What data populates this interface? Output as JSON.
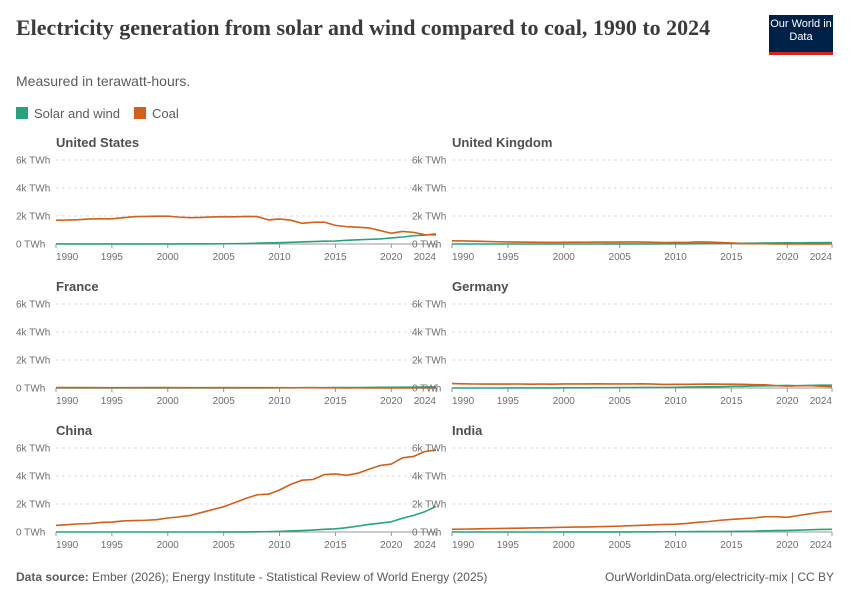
{
  "title": "Electricity generation from solar and wind compared to coal, 1990 to 2024",
  "subtitle": "Measured in terawatt-hours.",
  "logo": "Our World in Data",
  "source_label": "Data source:",
  "source": "Ember (2026); Energy Institute - Statistical Review of World Energy (2025)",
  "url": "OurWorldinData.org/electricity-mix | CC BY",
  "chart_data": [
    {
      "type": "line",
      "title": "United States",
      "x": [
        1990,
        1991,
        1992,
        1993,
        1994,
        1995,
        1996,
        1997,
        1998,
        1999,
        2000,
        2001,
        2002,
        2003,
        2004,
        2005,
        2006,
        2007,
        2008,
        2009,
        2010,
        2011,
        2012,
        2013,
        2014,
        2015,
        2016,
        2017,
        2018,
        2019,
        2020,
        2021,
        2022,
        2023,
        2024
      ],
      "xlim": [
        1990,
        2024
      ],
      "xticks": [
        1990,
        1995,
        2000,
        2005,
        2010,
        2015,
        2020,
        2024
      ],
      "ylim": [
        0,
        6000
      ],
      "yticks": [
        {
          "value": 0,
          "label": "0 TWh"
        },
        {
          "value": 2000,
          "label": "2k TWh"
        },
        {
          "value": 4000,
          "label": "4k TWh"
        },
        {
          "value": 6000,
          "label": "6k TWh"
        }
      ],
      "series": [
        {
          "name": "Solar and wind",
          "color": "#27a27f",
          "values": [
            3,
            3,
            3,
            3,
            4,
            4,
            4,
            4,
            4,
            5,
            6,
            7,
            11,
            11,
            15,
            18,
            27,
            35,
            56,
            75,
            95,
            120,
            145,
            172,
            200,
            214,
            260,
            300,
            330,
            360,
            430,
            500,
            590,
            640,
            720
          ]
        },
        {
          "name": "Coal",
          "color": "#d0601a",
          "values": [
            1700,
            1710,
            1740,
            1790,
            1800,
            1800,
            1880,
            1950,
            1970,
            1990,
            1990,
            1920,
            1880,
            1900,
            1930,
            1950,
            1940,
            1970,
            1960,
            1720,
            1790,
            1700,
            1480,
            1550,
            1560,
            1330,
            1240,
            1200,
            1150,
            960,
            770,
            900,
            830,
            670,
            650
          ]
        }
      ]
    },
    {
      "type": "line",
      "title": "United Kingdom",
      "x": [
        1990,
        1991,
        1992,
        1993,
        1994,
        1995,
        1996,
        1997,
        1998,
        1999,
        2000,
        2001,
        2002,
        2003,
        2004,
        2005,
        2006,
        2007,
        2008,
        2009,
        2010,
        2011,
        2012,
        2013,
        2014,
        2015,
        2016,
        2017,
        2018,
        2019,
        2020,
        2021,
        2022,
        2023,
        2024
      ],
      "xlim": [
        1990,
        2024
      ],
      "xticks": [
        1990,
        1995,
        2000,
        2005,
        2010,
        2015,
        2020,
        2024
      ],
      "ylim": [
        0,
        6000
      ],
      "yticks": [
        {
          "value": 0,
          "label": "0 TWh"
        },
        {
          "value": 2000,
          "label": "2k TWh"
        },
        {
          "value": 4000,
          "label": "4k TWh"
        },
        {
          "value": 6000,
          "label": "6k TWh"
        }
      ],
      "series": [
        {
          "name": "Solar and wind",
          "color": "#27a27f",
          "values": [
            0,
            0,
            0,
            0,
            0,
            0,
            0,
            1,
            1,
            1,
            1,
            1,
            1,
            1,
            2,
            3,
            4,
            5,
            7,
            9,
            10,
            16,
            21,
            29,
            36,
            48,
            48,
            61,
            70,
            77,
            88,
            78,
            94,
            95,
            100
          ]
        },
        {
          "name": "Coal",
          "color": "#d0601a",
          "values": [
            230,
            220,
            200,
            180,
            160,
            150,
            140,
            130,
            120,
            110,
            120,
            130,
            125,
            140,
            135,
            140,
            150,
            140,
            125,
            105,
            110,
            110,
            145,
            135,
            102,
            76,
            31,
            23,
            17,
            8,
            5,
            6,
            5,
            4,
            1
          ]
        }
      ]
    },
    {
      "type": "line",
      "title": "France",
      "x": [
        1990,
        1991,
        1992,
        1993,
        1994,
        1995,
        1996,
        1997,
        1998,
        1999,
        2000,
        2001,
        2002,
        2003,
        2004,
        2005,
        2006,
        2007,
        2008,
        2009,
        2010,
        2011,
        2012,
        2013,
        2014,
        2015,
        2016,
        2017,
        2018,
        2019,
        2020,
        2021,
        2022,
        2023,
        2024
      ],
      "xlim": [
        1990,
        2024
      ],
      "xticks": [
        1990,
        1995,
        2000,
        2005,
        2010,
        2015,
        2020,
        2024
      ],
      "ylim": [
        0,
        6000
      ],
      "yticks": [
        {
          "value": 0,
          "label": "0 TWh"
        },
        {
          "value": 2000,
          "label": "2k TWh"
        },
        {
          "value": 4000,
          "label": "4k TWh"
        },
        {
          "value": 6000,
          "label": "6k TWh"
        }
      ],
      "series": [
        {
          "name": "Solar and wind",
          "color": "#27a27f",
          "values": [
            0,
            0,
            0,
            0,
            0,
            0,
            0,
            0,
            0,
            0,
            0,
            0,
            0,
            0,
            1,
            1,
            2,
            4,
            6,
            8,
            10,
            14,
            17,
            20,
            23,
            29,
            30,
            34,
            40,
            47,
            53,
            55,
            56,
            73,
            75
          ]
        },
        {
          "name": "Coal",
          "color": "#d0601a",
          "values": [
            30,
            30,
            33,
            28,
            25,
            27,
            27,
            24,
            33,
            30,
            28,
            24,
            25,
            27,
            25,
            28,
            23,
            24,
            24,
            21,
            24,
            17,
            19,
            20,
            9,
            9,
            8,
            10,
            6,
            2,
            2,
            3,
            3,
            2,
            1
          ]
        }
      ]
    },
    {
      "type": "line",
      "title": "Germany",
      "x": [
        1990,
        1991,
        1992,
        1993,
        1994,
        1995,
        1996,
        1997,
        1998,
        1999,
        2000,
        2001,
        2002,
        2003,
        2004,
        2005,
        2006,
        2007,
        2008,
        2009,
        2010,
        2011,
        2012,
        2013,
        2014,
        2015,
        2016,
        2017,
        2018,
        2019,
        2020,
        2021,
        2022,
        2023,
        2024
      ],
      "xlim": [
        1990,
        2024
      ],
      "xticks": [
        1990,
        1995,
        2000,
        2005,
        2010,
        2015,
        2020,
        2024
      ],
      "ylim": [
        0,
        6000
      ],
      "yticks": [
        {
          "value": 0,
          "label": "0 TWh"
        },
        {
          "value": 2000,
          "label": "2k TWh"
        },
        {
          "value": 4000,
          "label": "4k TWh"
        },
        {
          "value": 6000,
          "label": "6k TWh"
        }
      ],
      "series": [
        {
          "name": "Solar and wind",
          "color": "#27a27f",
          "values": [
            0,
            0,
            0,
            1,
            1,
            2,
            2,
            3,
            5,
            5,
            10,
            11,
            16,
            19,
            26,
            29,
            33,
            43,
            45,
            45,
            50,
            70,
            80,
            85,
            95,
            120,
            120,
            145,
            155,
            170,
            180,
            160,
            185,
            200,
            205
          ]
        },
        {
          "name": "Coal",
          "color": "#d0601a",
          "values": [
            320,
            300,
            285,
            280,
            280,
            280,
            285,
            275,
            280,
            275,
            290,
            290,
            290,
            300,
            290,
            290,
            290,
            300,
            280,
            255,
            260,
            260,
            270,
            280,
            270,
            270,
            260,
            240,
            230,
            170,
            135,
            165,
            170,
            125,
            105
          ]
        }
      ]
    },
    {
      "type": "line",
      "title": "China",
      "x": [
        1990,
        1991,
        1992,
        1993,
        1994,
        1995,
        1996,
        1997,
        1998,
        1999,
        2000,
        2001,
        2002,
        2003,
        2004,
        2005,
        2006,
        2007,
        2008,
        2009,
        2010,
        2011,
        2012,
        2013,
        2014,
        2015,
        2016,
        2017,
        2018,
        2019,
        2020,
        2021,
        2022,
        2023,
        2024
      ],
      "xlim": [
        1990,
        2024
      ],
      "xticks": [
        1990,
        1995,
        2000,
        2005,
        2010,
        2015,
        2020,
        2024
      ],
      "ylim": [
        0,
        6000
      ],
      "yticks": [
        {
          "value": 0,
          "label": "0 TWh"
        },
        {
          "value": 2000,
          "label": "2k TWh"
        },
        {
          "value": 4000,
          "label": "4k TWh"
        },
        {
          "value": 6000,
          "label": "6k TWh"
        }
      ],
      "series": [
        {
          "name": "Solar and wind",
          "color": "#27a27f",
          "values": [
            0,
            0,
            0,
            0,
            0,
            0,
            0,
            0,
            0,
            0,
            0,
            0,
            0,
            0,
            0,
            2,
            4,
            6,
            13,
            27,
            45,
            75,
            100,
            140,
            190,
            230,
            310,
            420,
            540,
            630,
            730,
            980,
            1190,
            1450,
            1830
          ]
        },
        {
          "name": "Coal",
          "color": "#d0601a",
          "values": [
            470,
            520,
            580,
            600,
            680,
            710,
            790,
            820,
            840,
            880,
            1000,
            1080,
            1180,
            1390,
            1600,
            1800,
            2100,
            2400,
            2660,
            2700,
            3000,
            3400,
            3700,
            3750,
            4100,
            4150,
            4050,
            4200,
            4480,
            4750,
            4850,
            5300,
            5400,
            5750,
            5850
          ]
        }
      ]
    },
    {
      "type": "line",
      "title": "India",
      "x": [
        1990,
        1991,
        1992,
        1993,
        1994,
        1995,
        1996,
        1997,
        1998,
        1999,
        2000,
        2001,
        2002,
        2003,
        2004,
        2005,
        2006,
        2007,
        2008,
        2009,
        2010,
        2011,
        2012,
        2013,
        2014,
        2015,
        2016,
        2017,
        2018,
        2019,
        2020,
        2021,
        2022,
        2023,
        2024
      ],
      "xlim": [
        1990,
        2024
      ],
      "xticks": [
        1990,
        1995,
        2000,
        2005,
        2010,
        2015,
        2020,
        2024
      ],
      "ylim": [
        0,
        6000
      ],
      "yticks": [
        {
          "value": 0,
          "label": "0 TWh"
        },
        {
          "value": 2000,
          "label": "2k TWh"
        },
        {
          "value": 4000,
          "label": "4k TWh"
        },
        {
          "value": 6000,
          "label": "6k TWh"
        }
      ],
      "series": [
        {
          "name": "Solar and wind",
          "color": "#27a27f",
          "values": [
            0,
            0,
            0,
            0,
            0,
            1,
            1,
            1,
            1,
            1,
            2,
            2,
            2,
            3,
            4,
            6,
            8,
            11,
            13,
            17,
            20,
            25,
            28,
            34,
            36,
            38,
            50,
            60,
            90,
            100,
            110,
            130,
            160,
            180,
            190
          ]
        },
        {
          "name": "Coal",
          "color": "#d0601a",
          "values": [
            190,
            205,
            220,
            235,
            250,
            260,
            275,
            290,
            300,
            320,
            340,
            350,
            365,
            380,
            400,
            420,
            450,
            480,
            510,
            540,
            560,
            610,
            690,
            750,
            840,
            900,
            950,
            1000,
            1090,
            1090,
            1050,
            1180,
            1300,
            1420,
            1480
          ]
        }
      ]
    }
  ]
}
